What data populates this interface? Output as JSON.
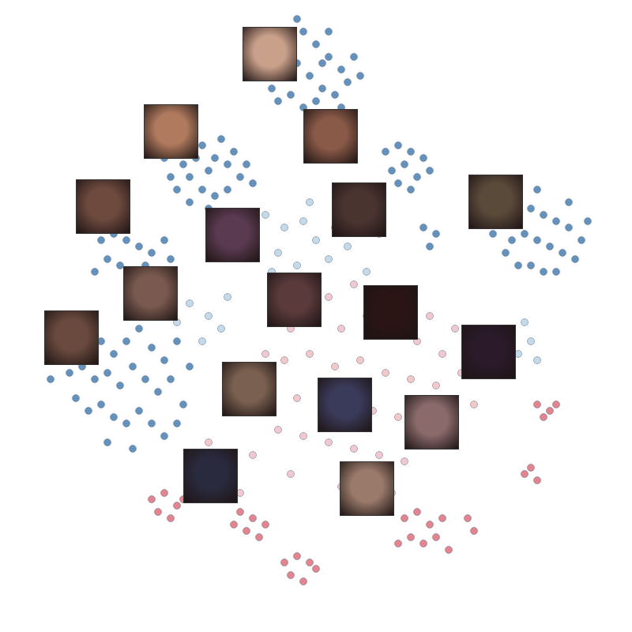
{
  "chart_data": {
    "type": "scatter",
    "xlim": [
      0,
      100
    ],
    "ylim": [
      0,
      100
    ],
    "tick_labels": false,
    "series": [
      {
        "color": "#4a7fb0",
        "marker": "circle",
        "x": [
          44,
          46,
          48,
          50,
          52,
          54,
          47,
          49,
          51,
          45,
          43,
          53,
          55,
          42,
          50,
          48,
          46,
          52,
          56,
          41,
          44,
          54,
          57,
          47,
          51,
          28,
          30,
          32,
          34,
          36,
          38,
          30,
          32,
          34,
          36,
          27,
          29,
          31,
          33,
          35,
          37,
          39,
          40,
          26,
          28,
          33,
          30,
          61,
          63,
          65,
          67,
          62,
          64,
          66,
          68,
          63,
          65,
          80,
          82,
          84,
          86,
          88,
          90,
          92,
          81,
          83,
          85,
          87,
          89,
          91,
          84,
          86,
          88,
          80,
          93,
          85,
          82,
          90,
          78,
          16,
          18,
          20,
          22,
          24,
          26,
          17,
          19,
          21,
          23,
          25,
          15,
          20,
          27,
          10,
          12,
          14,
          16,
          18,
          20,
          22,
          24,
          26,
          28,
          9,
          11,
          13,
          15,
          17,
          19,
          21,
          23,
          25,
          27,
          12,
          14,
          16,
          18,
          20,
          22,
          24,
          26,
          29,
          30,
          8,
          17,
          21,
          28,
          67,
          69,
          68
        ],
        "values": [
          92,
          94,
          95,
          93,
          91,
          89,
          90,
          88,
          86,
          88,
          86,
          85,
          87,
          89,
          84,
          83,
          85,
          95,
          91,
          92,
          84,
          83,
          88,
          97,
          90,
          76,
          78,
          77,
          75,
          74,
          72,
          72,
          70,
          69,
          70,
          72,
          74,
          75,
          73,
          78,
          76,
          74,
          71,
          75,
          70,
          67,
          68,
          76,
          77,
          76,
          75,
          73,
          74,
          72,
          73,
          71,
          70,
          66,
          68,
          67,
          66,
          65,
          64,
          62,
          62,
          63,
          62,
          61,
          60,
          59,
          58,
          57,
          57,
          60,
          65,
          70,
          58,
          68,
          63,
          62,
          63,
          62,
          61,
          60,
          62,
          59,
          58,
          57,
          58,
          57,
          57,
          65,
          59,
          47,
          45,
          48,
          46,
          44,
          46,
          48,
          45,
          43,
          46,
          43,
          41,
          42,
          40,
          41,
          39,
          42,
          40,
          38,
          40,
          37,
          35,
          36,
          34,
          33,
          35,
          33,
          31,
          36,
          42,
          40,
          30,
          29,
          33,
          64,
          63,
          61
        ]
      },
      {
        "color": "#bcd3e6",
        "marker": "circle",
        "x": [
          42,
          45,
          48,
          50,
          53,
          56,
          44,
          47,
          52,
          55,
          58,
          60,
          40,
          43,
          57,
          49,
          78,
          80,
          82,
          84,
          79,
          83,
          77,
          85,
          30,
          33,
          35,
          28,
          32,
          36
        ],
        "values": [
          66,
          64,
          65,
          62,
          64,
          66,
          60,
          58,
          59,
          61,
          57,
          63,
          63,
          57,
          68,
          68,
          47,
          45,
          44,
          46,
          42,
          49,
          44,
          43,
          52,
          50,
          48,
          49,
          46,
          53
        ]
      },
      {
        "color": "#f1c0c4",
        "marker": "circle",
        "x": [
          44,
          48,
          52,
          56,
          60,
          64,
          68,
          72,
          46,
          50,
          54,
          58,
          62,
          66,
          70,
          42,
          45,
          49,
          53,
          57,
          61,
          65,
          69,
          43,
          47,
          51,
          55,
          59,
          63,
          67,
          44,
          48,
          52,
          56,
          60,
          40,
          36,
          38,
          73,
          75,
          71,
          64,
          38,
          46,
          54,
          62,
          33,
          35
        ],
        "values": [
          52,
          54,
          53,
          55,
          54,
          52,
          50,
          48,
          48,
          49,
          48,
          50,
          47,
          46,
          44,
          44,
          43,
          44,
          42,
          43,
          41,
          40,
          39,
          38,
          37,
          38,
          36,
          35,
          34,
          33,
          32,
          31,
          30,
          29,
          28,
          28,
          35,
          40,
          41,
          36,
          30,
          27,
          22,
          25,
          23,
          22,
          30,
          25
        ]
      },
      {
        "color": "#de6f7a",
        "marker": "circle",
        "x": [
          24,
          26,
          28,
          25,
          27,
          29,
          38,
          40,
          42,
          39,
          41,
          37,
          45,
          47,
          49,
          46,
          48,
          50,
          64,
          66,
          68,
          70,
          65,
          67,
          69,
          71,
          63,
          85,
          87,
          86,
          88,
          83,
          84,
          85,
          74,
          75
        ],
        "values": [
          21,
          22,
          20,
          19,
          18,
          21,
          19,
          18,
          17,
          16,
          15,
          17,
          11,
          12,
          11,
          9,
          8,
          10,
          18,
          19,
          17,
          18,
          15,
          14,
          15,
          13,
          14,
          36,
          35,
          34,
          36,
          25,
          26,
          24,
          18,
          16
        ]
      }
    ]
  }
}
